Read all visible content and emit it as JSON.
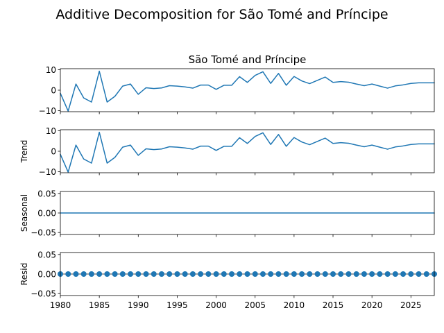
{
  "chart_data": {
    "type": "line",
    "title": "Additive Decomposition for São Tomé and Príncipe",
    "x": [
      1980,
      1981,
      1982,
      1983,
      1984,
      1985,
      1986,
      1987,
      1988,
      1989,
      1990,
      1991,
      1992,
      1993,
      1994,
      1995,
      1996,
      1997,
      1998,
      1999,
      2000,
      2001,
      2002,
      2003,
      2004,
      2005,
      2006,
      2007,
      2008,
      2009,
      2010,
      2011,
      2012,
      2013,
      2014,
      2015,
      2016,
      2017,
      2018,
      2019,
      2020,
      2021,
      2022,
      2023,
      2024,
      2025,
      2026,
      2027,
      2028
    ],
    "xlim": [
      1980,
      2028
    ],
    "x_ticks": [
      "1980",
      "1985",
      "1990",
      "1995",
      "2000",
      "2005",
      "2010",
      "2015",
      "2020",
      "2025"
    ],
    "panels": [
      {
        "key": "observed",
        "title": "São Tomé and Príncipe",
        "ylabel": "",
        "ylim": [
          -10.5,
          10.5
        ],
        "y_ticks": [
          "10",
          "0",
          "−10"
        ],
        "style": "line",
        "values": [
          -1.5,
          -10.2,
          3.0,
          -3.8,
          -5.8,
          9.3,
          -5.8,
          -3.0,
          2.0,
          3.0,
          -2.0,
          1.2,
          0.8,
          1.1,
          2.2,
          2.0,
          1.6,
          1.0,
          2.5,
          2.5,
          0.4,
          2.4,
          2.4,
          6.6,
          3.8,
          7.2,
          9.0,
          3.3,
          8.2,
          2.4,
          6.7,
          4.5,
          3.2,
          4.8,
          6.4,
          3.8,
          4.2,
          3.9,
          3.0,
          2.2,
          3.0,
          2.0,
          1.0,
          2.1,
          2.6,
          3.3,
          3.6,
          3.6,
          3.6
        ]
      },
      {
        "key": "trend",
        "title": "",
        "ylabel": "Trend",
        "ylim": [
          -10.5,
          10.5
        ],
        "y_ticks": [
          "10",
          "0",
          "−10"
        ],
        "style": "line",
        "values": [
          -1.5,
          -10.2,
          3.0,
          -3.8,
          -5.8,
          9.3,
          -5.8,
          -3.0,
          2.0,
          3.0,
          -2.0,
          1.2,
          0.8,
          1.1,
          2.2,
          2.0,
          1.6,
          1.0,
          2.5,
          2.5,
          0.4,
          2.4,
          2.4,
          6.6,
          3.8,
          7.2,
          9.0,
          3.3,
          8.2,
          2.4,
          6.7,
          4.5,
          3.2,
          4.8,
          6.4,
          3.8,
          4.2,
          3.9,
          3.0,
          2.2,
          3.0,
          2.0,
          1.0,
          2.1,
          2.6,
          3.3,
          3.6,
          3.6,
          3.6
        ]
      },
      {
        "key": "seasonal",
        "title": "",
        "ylabel": "Seasonal",
        "ylim": [
          -0.055,
          0.055
        ],
        "y_ticks": [
          "0.05",
          "0.00",
          "−0.05"
        ],
        "style": "line",
        "values": [
          0,
          0,
          0,
          0,
          0,
          0,
          0,
          0,
          0,
          0,
          0,
          0,
          0,
          0,
          0,
          0,
          0,
          0,
          0,
          0,
          0,
          0,
          0,
          0,
          0,
          0,
          0,
          0,
          0,
          0,
          0,
          0,
          0,
          0,
          0,
          0,
          0,
          0,
          0,
          0,
          0,
          0,
          0,
          0,
          0,
          0,
          0,
          0,
          0
        ]
      },
      {
        "key": "resid",
        "title": "",
        "ylabel": "Resid",
        "ylim": [
          -0.055,
          0.055
        ],
        "y_ticks": [
          "0.05",
          "0.00",
          "−0.05"
        ],
        "style": "scatter",
        "values": [
          0,
          0,
          0,
          0,
          0,
          0,
          0,
          0,
          0,
          0,
          0,
          0,
          0,
          0,
          0,
          0,
          0,
          0,
          0,
          0,
          0,
          0,
          0,
          0,
          0,
          0,
          0,
          0,
          0,
          0,
          0,
          0,
          0,
          0,
          0,
          0,
          0,
          0,
          0,
          0,
          0,
          0,
          0,
          0,
          0,
          0,
          0,
          0,
          0
        ]
      }
    ],
    "line_color": "#1f77b4",
    "grid": false,
    "legend": "none"
  }
}
